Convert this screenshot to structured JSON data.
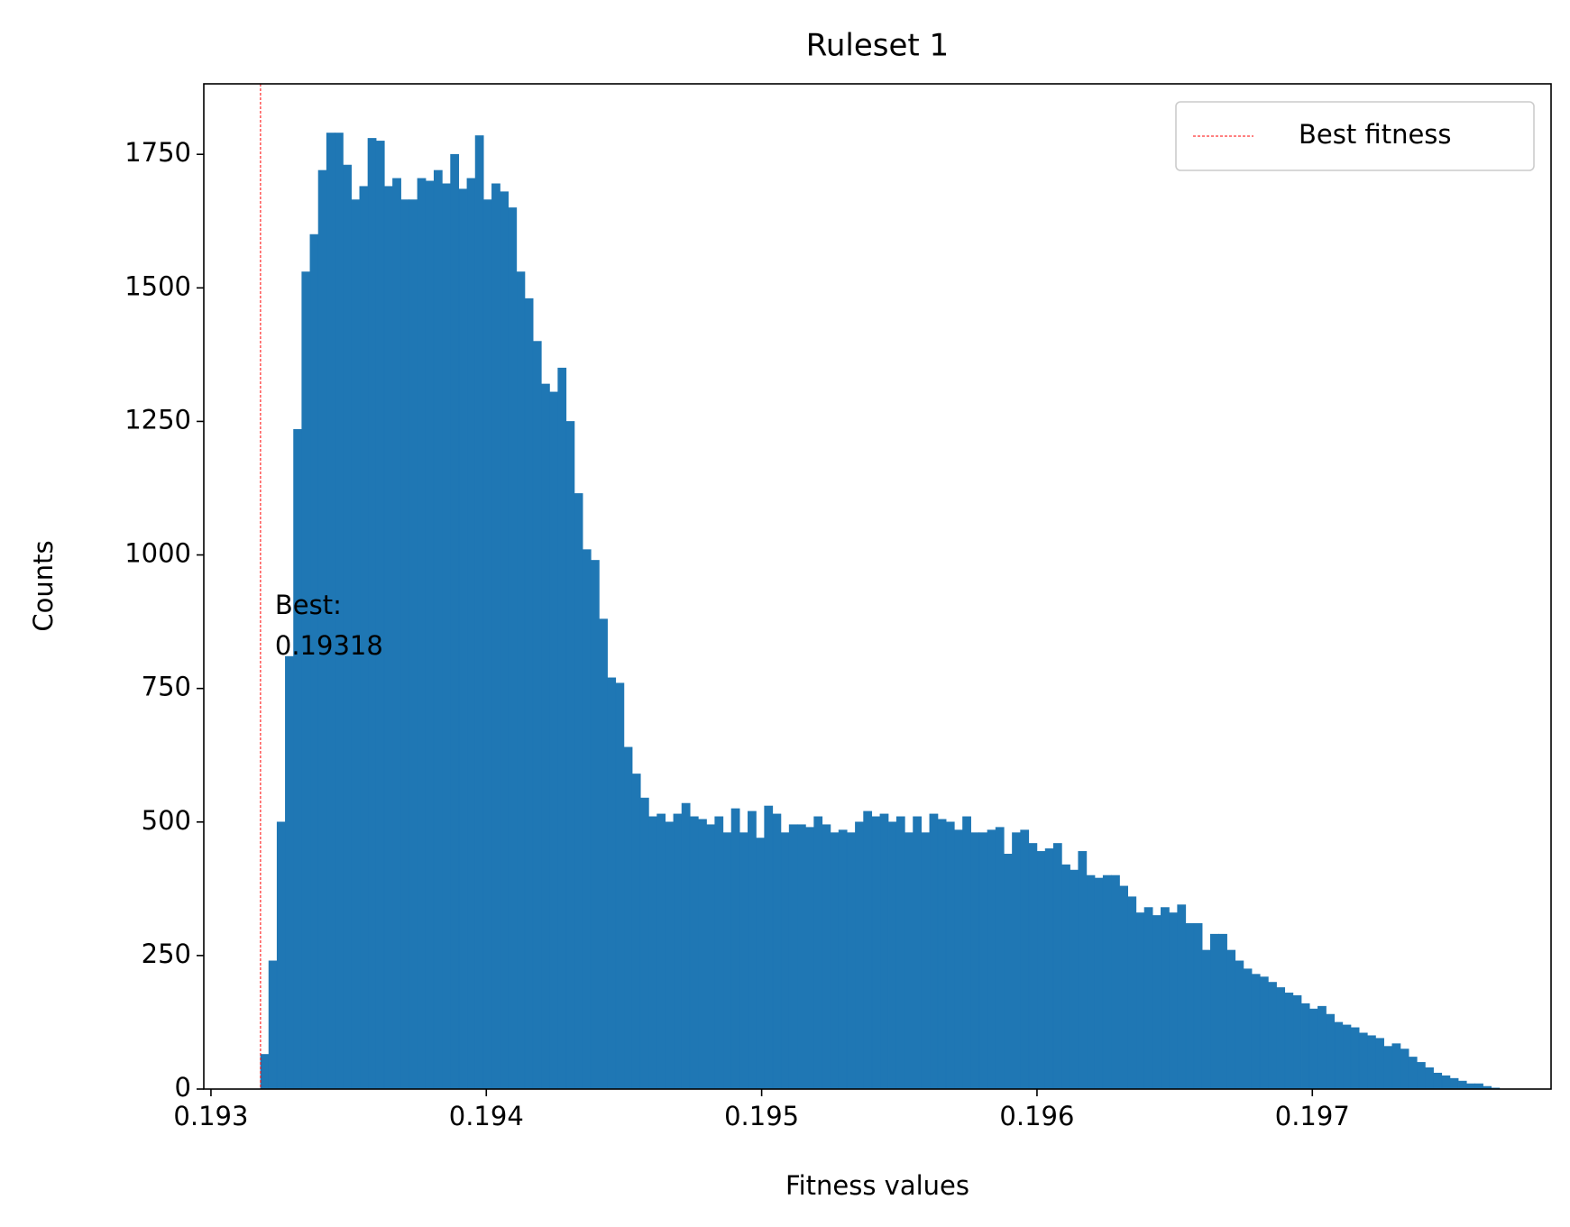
{
  "chart_data": {
    "type": "histogram",
    "title": "Ruleset 1",
    "x_label": "Fitness values",
    "y_label": "Counts",
    "bins": [
      0.19318,
      0.19321,
      0.19324,
      0.19327,
      0.1933,
      0.19333,
      0.19336,
      0.19339,
      0.19342,
      0.19345,
      0.19348,
      0.19351,
      0.19354,
      0.19357,
      0.1936,
      0.19363,
      0.19366,
      0.19369,
      0.19372,
      0.19375,
      0.19378,
      0.19381,
      0.19384,
      0.19387,
      0.1939,
      0.19393,
      0.19396,
      0.19399,
      0.19402,
      0.19405,
      0.19408,
      0.19411,
      0.19414,
      0.19417,
      0.1942,
      0.19423,
      0.19426,
      0.19429,
      0.19432,
      0.19435,
      0.19438,
      0.19441,
      0.19444,
      0.19447,
      0.1945,
      0.19453,
      0.19456,
      0.19459,
      0.19462,
      0.19465,
      0.19468,
      0.19471,
      0.19474,
      0.19477,
      0.1948,
      0.19483,
      0.19486,
      0.19489,
      0.19492,
      0.19495,
      0.19498,
      0.19501,
      0.19504,
      0.19507,
      0.1951,
      0.19513,
      0.19516,
      0.19519,
      0.19522,
      0.19525,
      0.19528,
      0.19531,
      0.19534,
      0.19537,
      0.1954,
      0.19543,
      0.19546,
      0.19549,
      0.19552,
      0.19555,
      0.19558,
      0.19561,
      0.19564,
      0.19567,
      0.1957,
      0.19573,
      0.19576,
      0.19579,
      0.19582,
      0.19585,
      0.19588,
      0.19591,
      0.19594,
      0.19597,
      0.196,
      0.19603,
      0.19606,
      0.19609,
      0.19612,
      0.19615,
      0.19618,
      0.19621,
      0.19624,
      0.19627,
      0.1963,
      0.19633,
      0.19636,
      0.19639,
      0.19642,
      0.19645,
      0.19648,
      0.19651,
      0.19654,
      0.19657,
      0.1966,
      0.19663,
      0.19666,
      0.19669,
      0.19672,
      0.19675,
      0.19678,
      0.19681,
      0.19684,
      0.19687,
      0.1969,
      0.19693,
      0.19696,
      0.19699,
      0.19702,
      0.19705,
      0.19708,
      0.19711,
      0.19714,
      0.19717,
      0.1972,
      0.19723,
      0.19726,
      0.19729,
      0.19732,
      0.19735,
      0.19738,
      0.19741,
      0.19744,
      0.19747,
      0.1975,
      0.19753,
      0.19756,
      0.19759,
      0.19762,
      0.19765,
      0.19768
    ],
    "values": [
      65,
      240,
      500,
      810,
      1235,
      1530,
      1600,
      1720,
      1790,
      1790,
      1730,
      1665,
      1690,
      1780,
      1775,
      1690,
      1705,
      1665,
      1665,
      1705,
      1700,
      1720,
      1695,
      1750,
      1685,
      1705,
      1785,
      1665,
      1695,
      1680,
      1650,
      1530,
      1480,
      1400,
      1320,
      1305,
      1350,
      1250,
      1115,
      1010,
      990,
      880,
      770,
      760,
      640,
      590,
      545,
      510,
      515,
      500,
      515,
      535,
      510,
      505,
      495,
      510,
      480,
      525,
      480,
      520,
      470,
      530,
      515,
      480,
      495,
      495,
      490,
      510,
      495,
      480,
      485,
      480,
      500,
      520,
      510,
      515,
      500,
      510,
      480,
      510,
      480,
      515,
      505,
      500,
      485,
      510,
      480,
      480,
      485,
      490,
      440,
      480,
      485,
      460,
      445,
      450,
      460,
      420,
      410,
      445,
      400,
      395,
      400,
      400,
      380,
      360,
      330,
      340,
      325,
      340,
      330,
      345,
      310,
      310,
      260,
      290,
      290,
      260,
      240,
      225,
      215,
      210,
      200,
      190,
      180,
      175,
      160,
      150,
      155,
      140,
      125,
      120,
      115,
      105,
      100,
      95,
      80,
      85,
      75,
      60,
      50,
      40,
      30,
      25,
      20,
      15,
      10,
      10,
      5,
      2
    ],
    "color": "#1f77b4",
    "vline": {
      "name": "Best fitness",
      "value": 0.19318,
      "color": "#ff0000"
    },
    "annotation": "Best:",
    "xlim": [
      0.192974,
      0.197867
    ],
    "ylim": [
      0,
      1882
    ],
    "xticks": [
      0.193,
      0.194,
      0.195,
      0.196,
      0.197
    ],
    "yticks": [
      0,
      250,
      500,
      750,
      1000,
      1250,
      1500,
      1750
    ],
    "legend": "upper right",
    "grid": false
  }
}
